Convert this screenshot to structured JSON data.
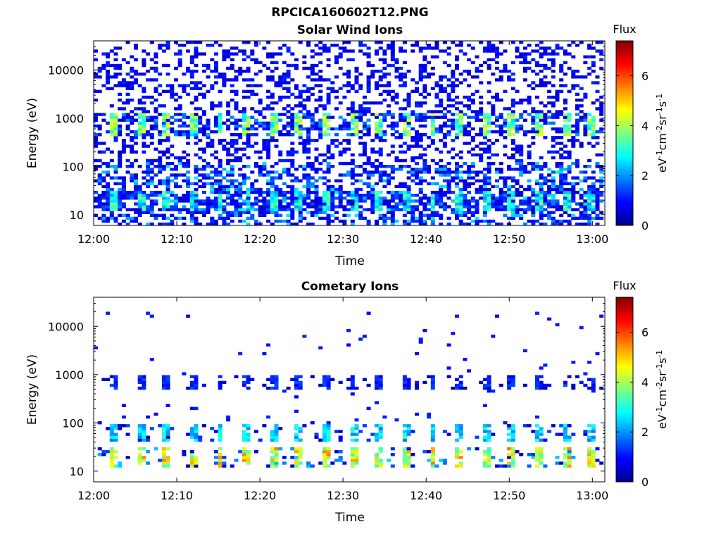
{
  "figure_title": "RPCICA160602T12.PNG",
  "colors": {
    "colormap": [
      "#00008f",
      "#0000ff",
      "#0080ff",
      "#00ffff",
      "#80ff80",
      "#ffff00",
      "#ff8000",
      "#ff0000",
      "#800000"
    ]
  },
  "chart_data": [
    {
      "type": "heatmap",
      "title": "Solar Wind Ions",
      "xlabel": "Time",
      "ylabel": "Energy (eV)",
      "x_ticks": [
        "12:00",
        "12:10",
        "12:20",
        "12:30",
        "12:40",
        "12:50",
        "13:00"
      ],
      "x_range_minutes": [
        0,
        61.5
      ],
      "y_scale": "log",
      "y_ticks": [
        "10",
        "100",
        "1000",
        "10000"
      ],
      "y_ticks_values": [
        10,
        100,
        1000,
        10000
      ],
      "ylim": [
        6,
        40000
      ],
      "colorbar": {
        "label": "Flux",
        "unit": "eV-1cm-2sr-1s-1",
        "ticks": [
          "0",
          "2",
          "4",
          "6"
        ],
        "range": [
          0,
          7.4
        ]
      },
      "scan_period_minutes": 3.2,
      "scan_start_minutes": 2.3,
      "features": [
        {
          "energy_range": [
            400,
            1300
          ],
          "peak_flux": 4.6,
          "periodic": true
        },
        {
          "energy_range": [
            12,
            30
          ],
          "peak_flux": 3.6,
          "periodic": true
        },
        {
          "energy_range": [
            6,
            40000
          ],
          "peak_flux": 1.2,
          "periodic": false
        }
      ]
    },
    {
      "type": "heatmap",
      "title": "Cometary Ions",
      "xlabel": "Time",
      "ylabel": "Energy (eV)",
      "x_ticks": [
        "12:00",
        "12:10",
        "12:20",
        "12:30",
        "12:40",
        "12:50",
        "13:00"
      ],
      "x_range_minutes": [
        0,
        61.5
      ],
      "y_scale": "log",
      "y_ticks": [
        "10",
        "100",
        "1000",
        "10000"
      ],
      "y_ticks_values": [
        10,
        100,
        1000,
        10000
      ],
      "ylim": [
        6,
        40000
      ],
      "colorbar": {
        "label": "Flux",
        "unit": "eV-1cm-2sr-1s-1",
        "ticks": [
          "0",
          "2",
          "4",
          "6"
        ],
        "range": [
          0,
          7.4
        ]
      },
      "scan_period_minutes": 3.2,
      "scan_start_minutes": 2.3,
      "features": [
        {
          "energy_range": [
            500,
            1000
          ],
          "peak_flux": 1.5,
          "periodic": true
        },
        {
          "energy_range": [
            12,
            30
          ],
          "peak_flux": 5.6,
          "periodic": true
        },
        {
          "energy_range": [
            40,
            100
          ],
          "peak_flux": 3.2,
          "periodic": true
        }
      ]
    }
  ]
}
